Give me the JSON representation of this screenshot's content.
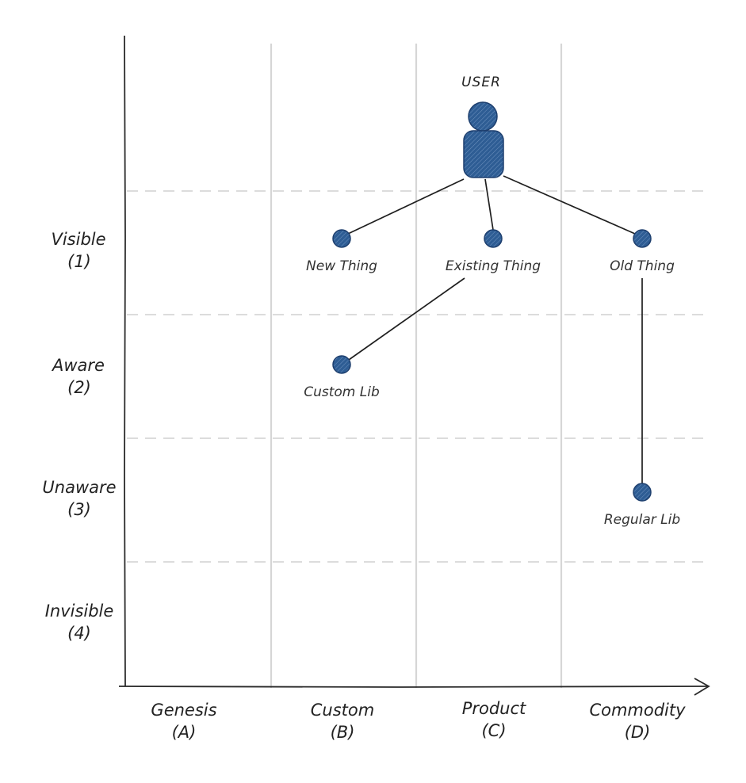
{
  "colors": {
    "node_fill": "#2e5d94",
    "node_stroke": "#1e3f6e",
    "axis": "#2a2a2a",
    "grid": "#d6d6d6"
  },
  "rows": [
    {
      "name": "Visible",
      "code": "(1)"
    },
    {
      "name": "Aware",
      "code": "(2)"
    },
    {
      "name": "Unaware",
      "code": "(3)"
    },
    {
      "name": "Invisible",
      "code": "(4)"
    }
  ],
  "columns": [
    {
      "name": "Genesis",
      "code": "(A)"
    },
    {
      "name": "Custom",
      "code": "(B)"
    },
    {
      "name": "Product",
      "code": "(C)"
    },
    {
      "name": "Commodity",
      "code": "(D)"
    }
  ],
  "user": {
    "label": "USER",
    "icon": "user-icon"
  },
  "nodes": [
    {
      "id": "new-thing",
      "label": "New Thing",
      "col": "B",
      "row": 1
    },
    {
      "id": "existing-thing",
      "label": "Existing Thing",
      "col": "C",
      "row": 1
    },
    {
      "id": "old-thing",
      "label": "Old Thing",
      "col": "D",
      "row": 1
    },
    {
      "id": "custom-lib",
      "label": "Custom Lib",
      "col": "B",
      "row": 2
    },
    {
      "id": "regular-lib",
      "label": "Regular Lib",
      "col": "D",
      "row": 3
    }
  ],
  "edges": [
    {
      "from": "user",
      "to": "new-thing"
    },
    {
      "from": "user",
      "to": "existing-thing"
    },
    {
      "from": "user",
      "to": "old-thing"
    },
    {
      "from": "existing-thing",
      "to": "custom-lib"
    },
    {
      "from": "old-thing",
      "to": "regular-lib"
    }
  ]
}
